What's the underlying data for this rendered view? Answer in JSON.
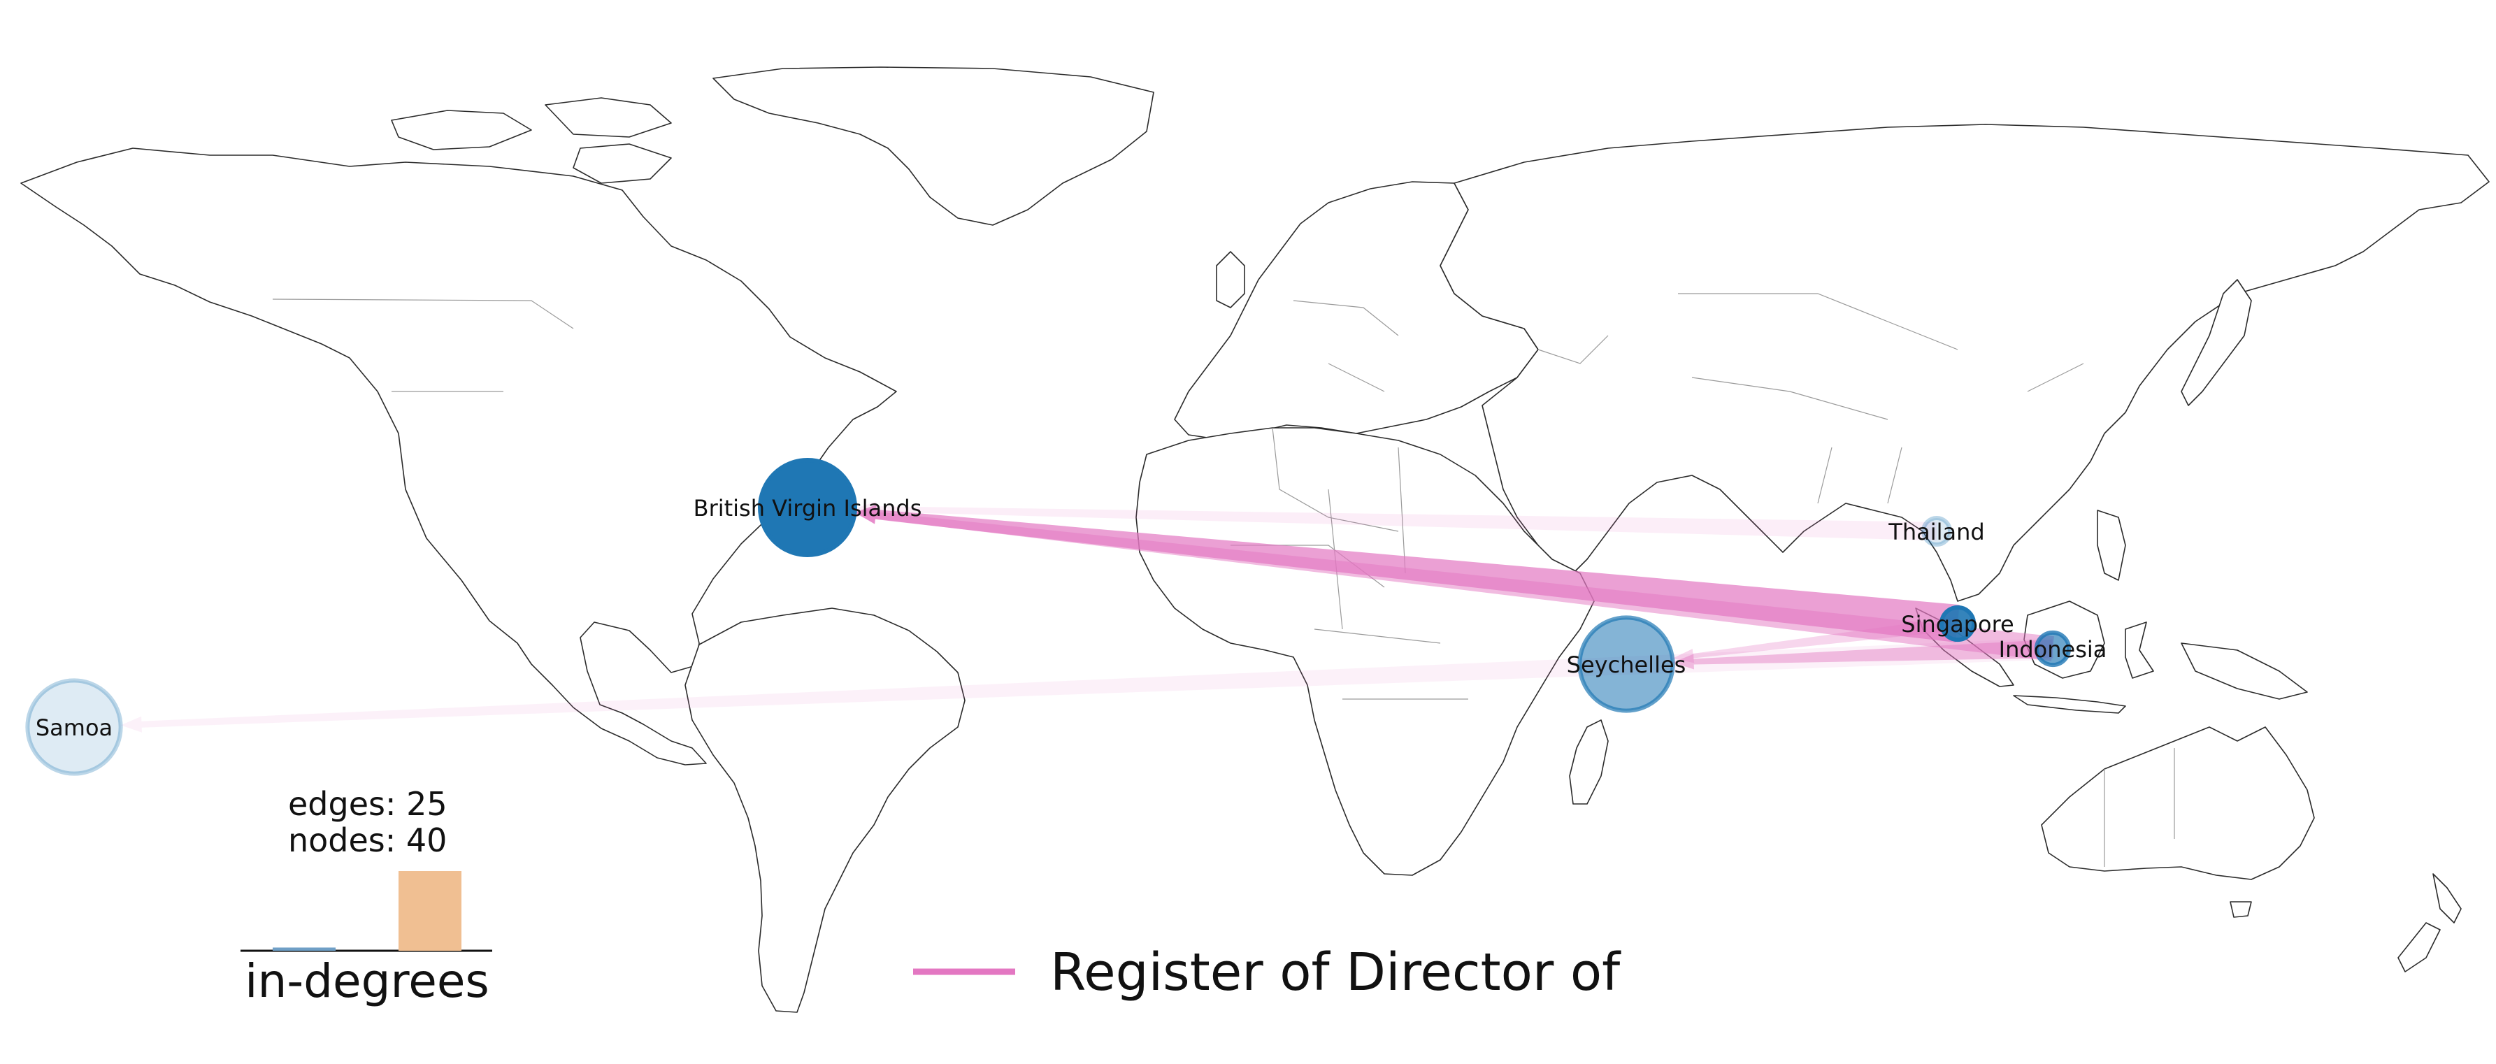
{
  "colors": {
    "edge": "#e377c2",
    "node": "#1f77b4",
    "bar_1": "#6f9fc6",
    "bar_2": "#f0bf92"
  },
  "nodes": [
    {
      "id": "bvi",
      "label": "British Virgin Islands",
      "size": 1.0,
      "opacity": 1.0
    },
    {
      "id": "seychelles",
      "label": "Seychelles",
      "size": 0.98,
      "opacity": 0.55
    },
    {
      "id": "singapore",
      "label": "Singapore",
      "size": 0.34,
      "opacity": 0.9
    },
    {
      "id": "indonesia",
      "label": "Indonesia",
      "size": 0.34,
      "opacity": 0.65
    },
    {
      "id": "thailand",
      "label": "Thailand",
      "size": 0.28,
      "opacity": 0.15
    },
    {
      "id": "samoa",
      "label": "Samoa",
      "size": 0.98,
      "opacity": 0.15
    }
  ],
  "edges": [
    {
      "from": "singapore",
      "to": "bvi",
      "weight": 1.0,
      "opacity": 0.7
    },
    {
      "from": "indonesia",
      "to": "bvi",
      "weight": 0.6,
      "opacity": 0.5
    },
    {
      "from": "thailand",
      "to": "bvi",
      "weight": 0.4,
      "opacity": 0.12
    },
    {
      "from": "indonesia",
      "to": "seychelles",
      "weight": 0.4,
      "opacity": 0.45
    },
    {
      "from": "singapore",
      "to": "seychelles",
      "weight": 0.25,
      "opacity": 0.3
    },
    {
      "from": "indonesia",
      "to": "samoa",
      "weight": 0.5,
      "opacity": 0.1
    }
  ],
  "stats": {
    "edges": "edges: 25",
    "nodes": "nodes: 40"
  },
  "histogram": {
    "label": "in-degrees",
    "bars": [
      0.04,
      1.0
    ]
  },
  "legend": {
    "label": "Register of Director of"
  }
}
